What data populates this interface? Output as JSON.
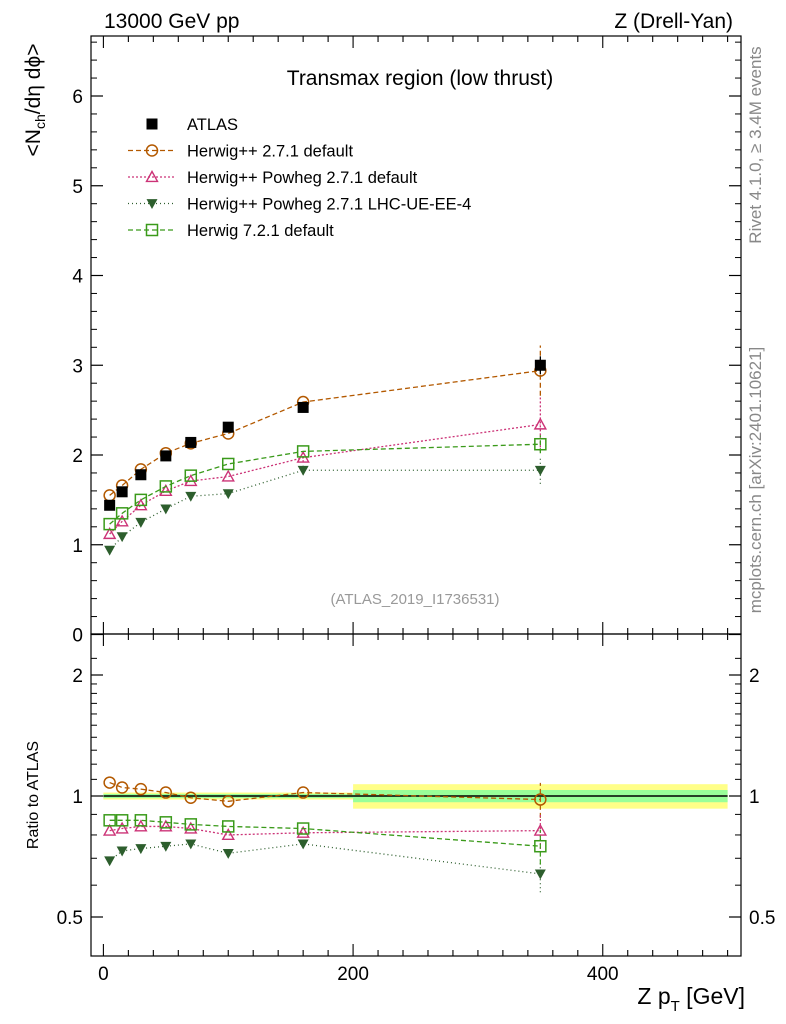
{
  "header": {
    "left": "13000 GeV pp",
    "right": "Z (Drell-Yan)"
  },
  "side_text": {
    "rivet": "Rivet 4.1.0, ≥ 3.4M events",
    "mcplots": "mcplots.cern.ch [arXiv:2401.10621]"
  },
  "colors": {
    "atlas": "#000000",
    "herwig271": "#b35900",
    "powheg271": "#cc3377",
    "powheg_lhc": "#2d5e2d",
    "herwig721": "#3a9a1a",
    "band_inner": "#99ff99",
    "band_outer": "#ffff88"
  },
  "chart_data": [
    {
      "type": "line",
      "panel": "main",
      "title": "Transmax region (low thrust)",
      "ylabel_main": "<N",
      "ylabel_sub": "ch",
      "ylabel_tail": "/dη dϕ>",
      "reference": "(ATLAS_2019_I1736531)",
      "xlim": [
        -20,
        520
      ],
      "ylim": [
        0,
        6.7
      ],
      "yticks": [
        0,
        1,
        2,
        3,
        4,
        5,
        6
      ],
      "ytick_labels": [
        "0",
        "1",
        "2",
        "3",
        "4",
        "5",
        "6"
      ],
      "xticks": [
        0,
        200,
        400
      ],
      "x": [
        5,
        15,
        30,
        50,
        70,
        100,
        160,
        350
      ],
      "series": [
        {
          "name": "ATLAS",
          "key": "atlas",
          "marker": "square-filled",
          "dash": "",
          "values": [
            1.44,
            1.59,
            1.78,
            1.99,
            2.14,
            2.31,
            2.53,
            3.0
          ],
          "err": [
            0.02,
            0.02,
            0.02,
            0.02,
            0.03,
            0.03,
            0.04,
            0.1
          ]
        },
        {
          "name": "Herwig++ 2.7.1 default",
          "key": "herwig271",
          "marker": "circle-open",
          "dash": "5,3",
          "values": [
            1.55,
            1.66,
            1.84,
            2.02,
            2.13,
            2.24,
            2.59,
            2.94
          ],
          "err": [
            0,
            0,
            0,
            0,
            0,
            0,
            0,
            0.28
          ]
        },
        {
          "name": "Herwig++ Powheg 2.7.1 default",
          "key": "powheg271",
          "marker": "triangle-up-open",
          "dash": "2,2",
          "values": [
            1.12,
            1.26,
            1.44,
            1.6,
            1.71,
            1.76,
            1.97,
            2.34
          ],
          "err": [
            0,
            0,
            0,
            0,
            0,
            0,
            0.05,
            0.3
          ]
        },
        {
          "name": "Herwig++ Powheg 2.7.1 LHC-UE-EE-4",
          "key": "powheg_lhc",
          "marker": "triangle-down-filled",
          "dash": "1,3",
          "values": [
            0.94,
            1.09,
            1.25,
            1.4,
            1.54,
            1.57,
            1.83,
            1.83
          ],
          "err": [
            0,
            0,
            0,
            0,
            0,
            0,
            0.05,
            0.15
          ]
        },
        {
          "name": "Herwig 7.2.1 default",
          "key": "herwig721",
          "marker": "square-open",
          "dash": "5,3",
          "values": [
            1.23,
            1.35,
            1.5,
            1.65,
            1.77,
            1.9,
            2.04,
            2.12
          ],
          "err": [
            0,
            0,
            0,
            0,
            0,
            0,
            0,
            0.1
          ]
        }
      ]
    },
    {
      "type": "line",
      "panel": "ratio",
      "ylabel": "Ratio to ATLAS",
      "xlabel_main": "Z p",
      "xlabel_sub": "T",
      "xlabel_tail": " [GeV]",
      "xlim": [
        -20,
        520
      ],
      "ylim_log": [
        0.4,
        2.4
      ],
      "yticks": [
        0.5,
        1,
        2
      ],
      "ytick_labels": [
        "0.5",
        "1",
        "2"
      ],
      "xticks": [
        0,
        200,
        400
      ],
      "xtick_labels": [
        "0",
        "200",
        "400"
      ],
      "x": [
        5,
        15,
        30,
        50,
        70,
        100,
        160,
        350
      ],
      "band_bins": [
        {
          "xlo": 0,
          "xhi": 200,
          "inner": 0.012,
          "outer": 0.02
        },
        {
          "xlo": 200,
          "xhi": 500,
          "inner": 0.035,
          "outer": 0.07
        }
      ],
      "series": [
        {
          "name": "Herwig++ 2.7.1 default",
          "key": "herwig271",
          "marker": "circle-open",
          "dash": "5,3",
          "values": [
            1.08,
            1.05,
            1.04,
            1.02,
            0.99,
            0.97,
            1.02,
            0.98
          ]
        },
        {
          "name": "Herwig++ Powheg 2.7.1 default",
          "key": "powheg271",
          "marker": "triangle-up-open",
          "dash": "2,2",
          "values": [
            0.82,
            0.83,
            0.84,
            0.84,
            0.83,
            0.8,
            0.81,
            0.82
          ]
        },
        {
          "name": "Herwig++ Powheg 2.7.1 LHC-UE-EE-4",
          "key": "powheg_lhc",
          "marker": "triangle-down-filled",
          "dash": "1,3",
          "values": [
            0.69,
            0.73,
            0.74,
            0.75,
            0.76,
            0.72,
            0.76,
            0.64
          ]
        },
        {
          "name": "Herwig 7.2.1 default",
          "key": "herwig721",
          "marker": "square-open",
          "dash": "5,3",
          "values": [
            0.87,
            0.87,
            0.87,
            0.86,
            0.85,
            0.84,
            0.83,
            0.75
          ]
        }
      ]
    }
  ]
}
